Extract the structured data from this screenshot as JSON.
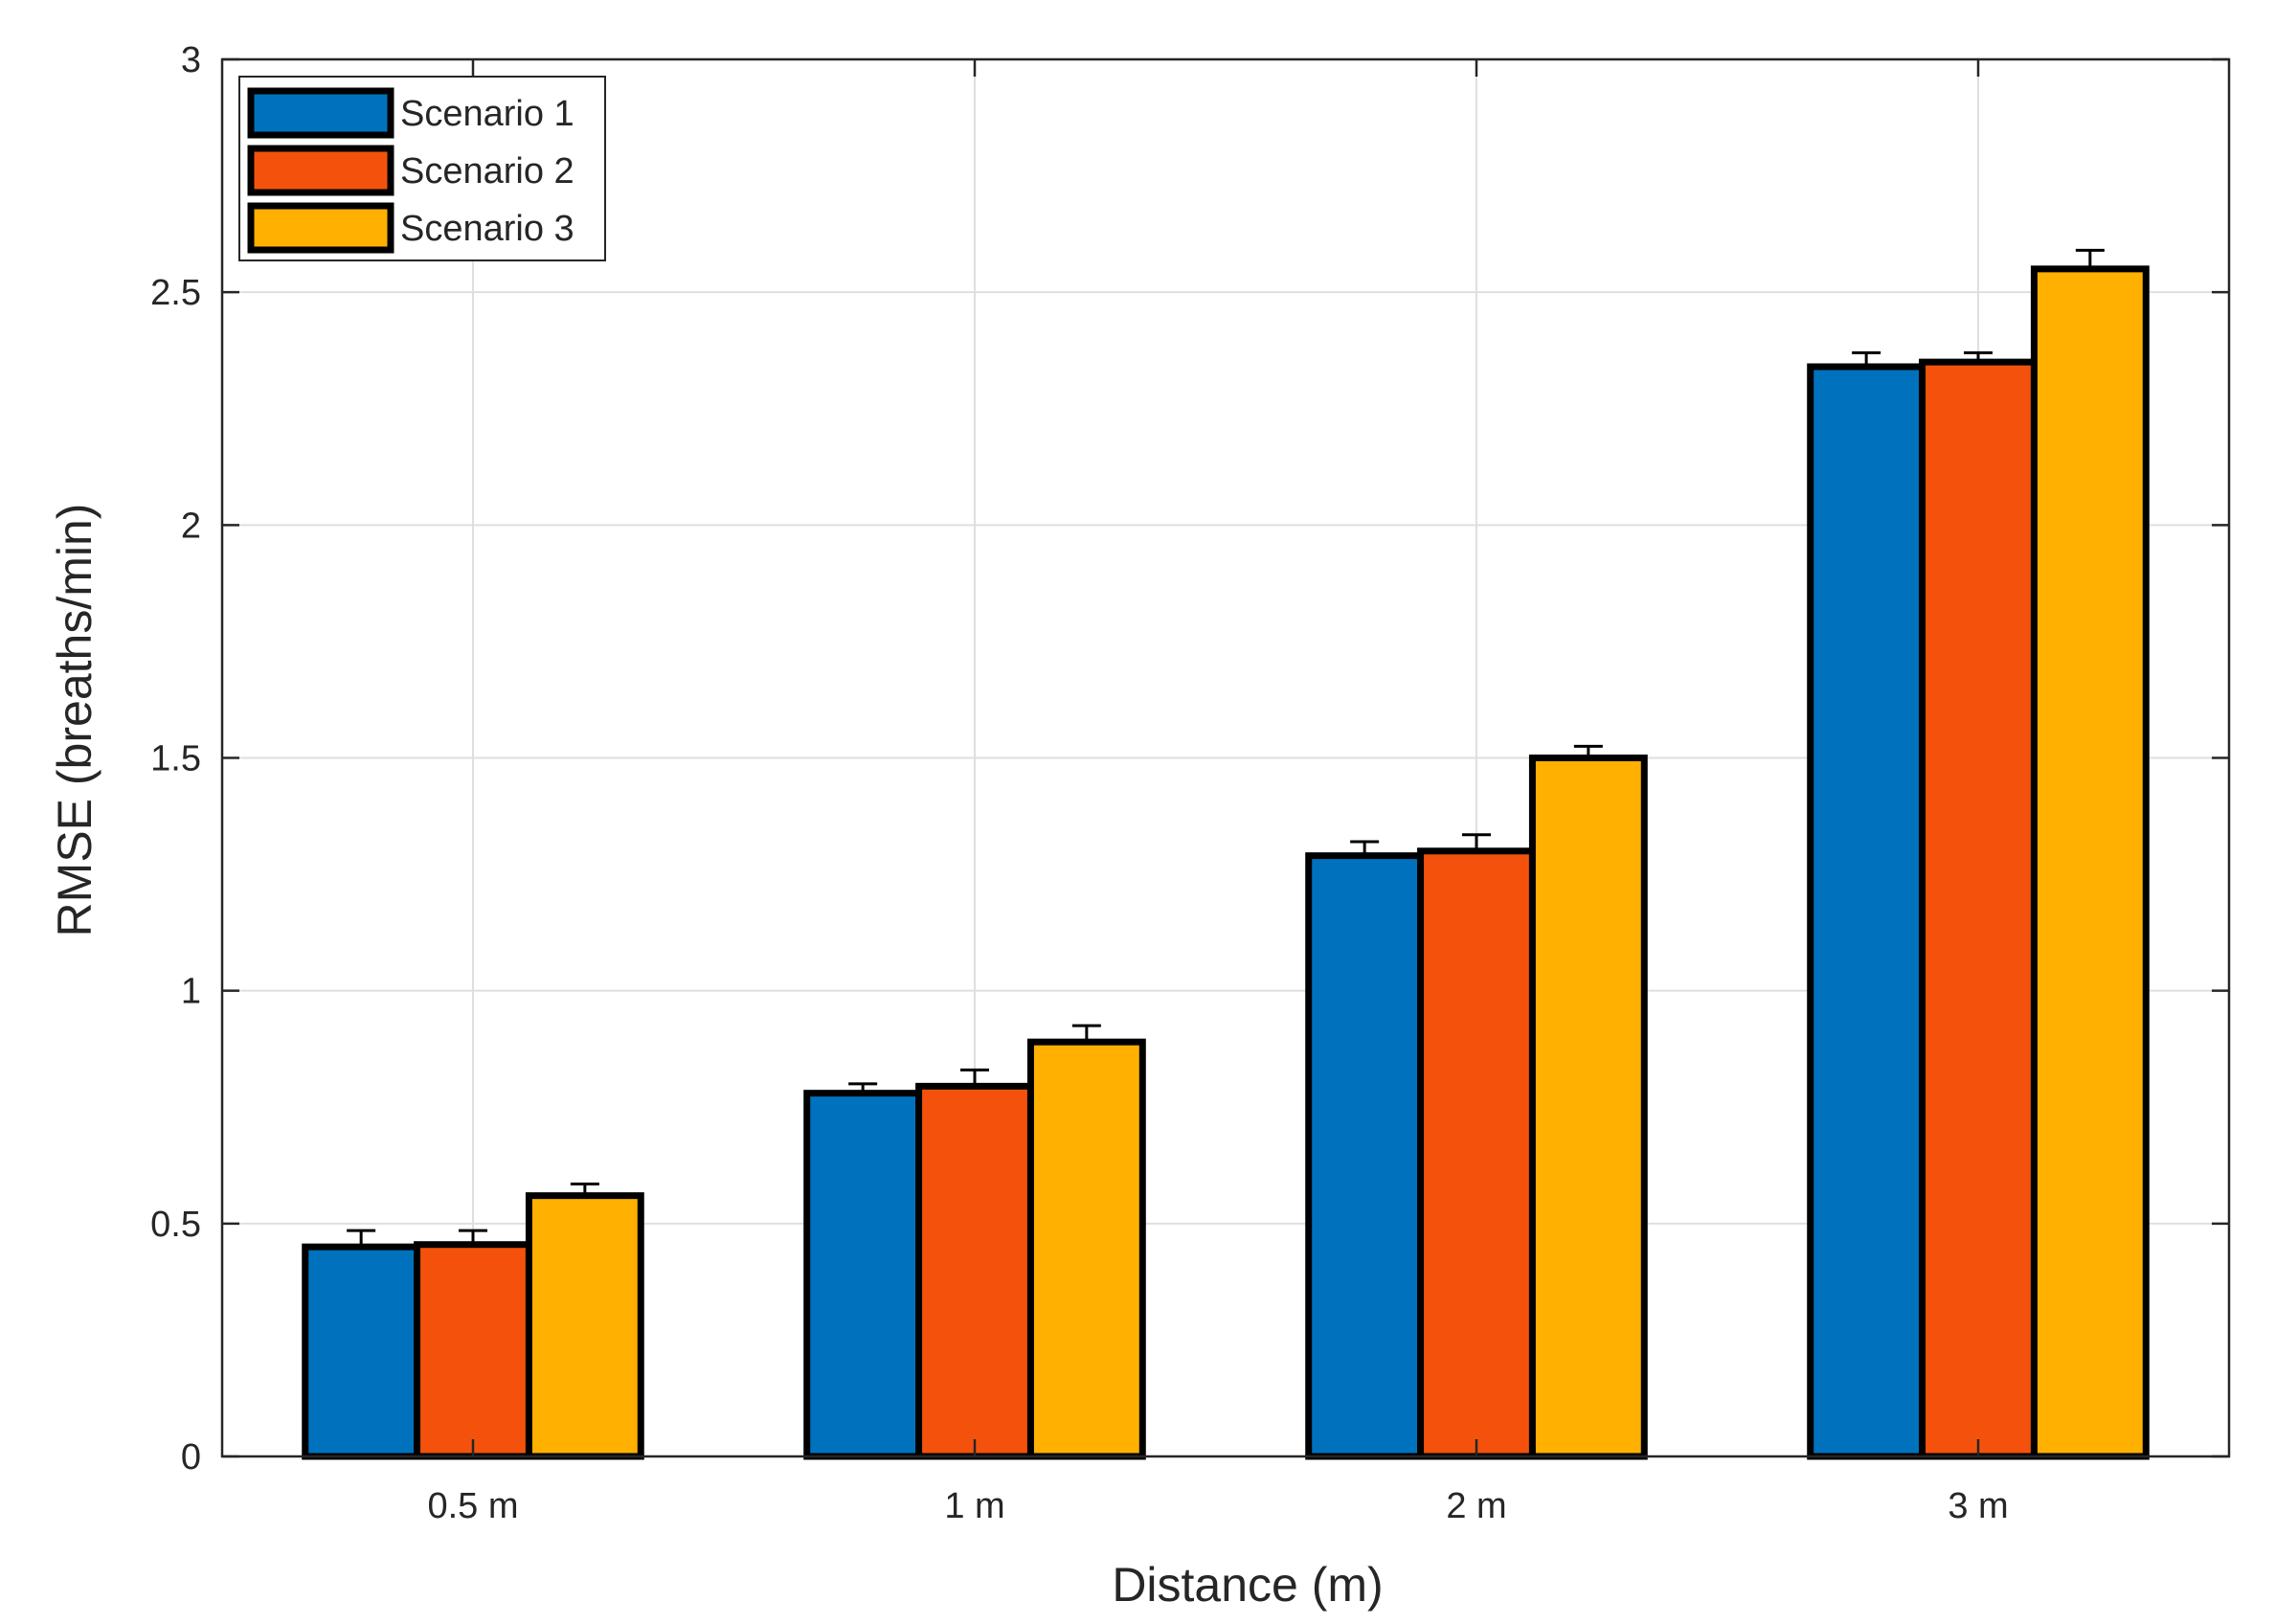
{
  "chart_data": {
    "type": "bar",
    "title": "",
    "xlabel": "Distance (m)",
    "ylabel": "RMSE (breaths/min)",
    "categories": [
      "0.5 m",
      "1 m",
      "2 m",
      "3 m"
    ],
    "ylim": [
      0,
      3
    ],
    "yticks": [
      0,
      0.5,
      1,
      1.5,
      2,
      2.5,
      3
    ],
    "ytick_labels": [
      "0",
      "0.5",
      "1",
      "1.5",
      "2",
      "2.5",
      "3"
    ],
    "grid": true,
    "legend_position": "top-left",
    "series": [
      {
        "name": "Scenario 1",
        "color": "#0072BD",
        "values": [
          0.45,
          0.78,
          1.29,
          2.34
        ],
        "errors": [
          0.035,
          0.02,
          0.03,
          0.03
        ]
      },
      {
        "name": "Scenario 2",
        "color": "#F4520C",
        "values": [
          0.455,
          0.795,
          1.3,
          2.35
        ],
        "errors": [
          0.03,
          0.035,
          0.035,
          0.02
        ]
      },
      {
        "name": "Scenario 3",
        "color": "#FFB000",
        "values": [
          0.56,
          0.89,
          1.5,
          2.55
        ],
        "errors": [
          0.025,
          0.035,
          0.025,
          0.04
        ]
      }
    ]
  }
}
